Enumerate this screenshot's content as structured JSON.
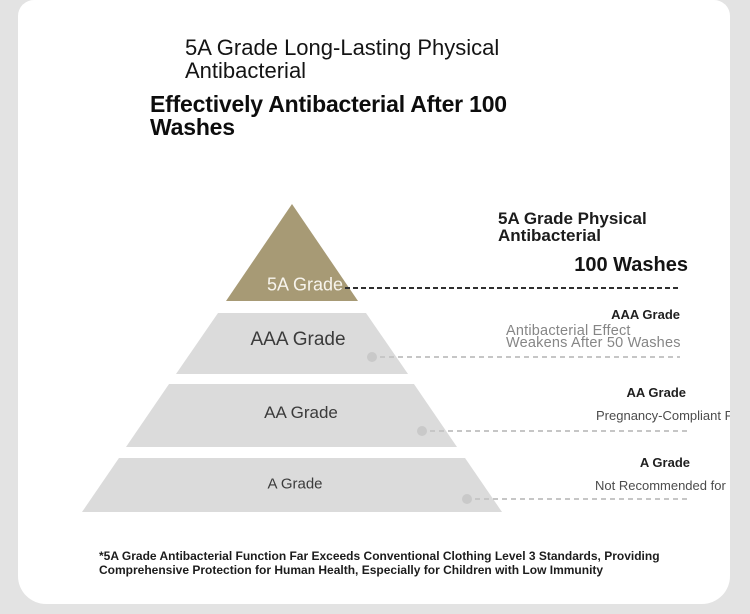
{
  "page": {
    "background_color": "#e3e3e3",
    "card_color": "#ffffff",
    "accent_color": "#a79a75",
    "tier_gray_color": "#dbdbdb"
  },
  "header": {
    "subtitle_line1": "5A Grade Long-Lasting Physical",
    "subtitle_line2": "Antibacterial",
    "title_line1": "Effectively Antibacterial After 100",
    "title_line2": "Washes"
  },
  "pyramid": {
    "type": "pyramid",
    "levels": [
      {
        "label": "5A Grade",
        "color": "#a79a75",
        "text_color": "#f7f4ec"
      },
      {
        "label": "AAA Grade",
        "color": "#dbdbdb",
        "text_color": "#3b3b3b"
      },
      {
        "label": "AA Grade",
        "color": "#dbdbdb",
        "text_color": "#3b3b3b"
      },
      {
        "label": "A Grade",
        "color": "#dbdbdb",
        "text_color": "#3b3b3b"
      }
    ]
  },
  "annotations": {
    "level_5a": {
      "title_line1": "5A Grade Physical",
      "title_line2": "Antibacterial",
      "highlight": "100 Washes"
    },
    "level_aaa": {
      "grade": "AAA Grade",
      "desc_line1": "Antibacterial Effect",
      "desc_line2": "Weakens After 50 Washes"
    },
    "level_aa": {
      "grade": "AA Grade",
      "desc": "Pregnancy-Compliant Products"
    },
    "level_a": {
      "grade": "A Grade",
      "desc": "Not Recommended for Pregnant Women"
    }
  },
  "footnote": {
    "line1": "*5A Grade Antibacterial Function Far Exceeds Conventional Clothing Level 3 Standards, Providing",
    "line2": "Comprehensive Protection for Human Health, Especially for Children with Low Immunity"
  }
}
